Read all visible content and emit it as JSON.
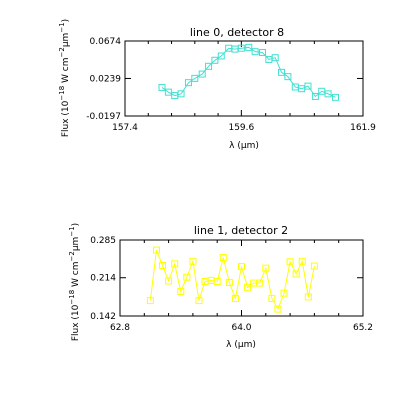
{
  "chart_data": [
    {
      "type": "line",
      "title": "line 0, detector 8",
      "xlabel": "λ (μm)",
      "ylabel": {
        "pre": "Flux (10",
        "exp1": "−18",
        "mid": " W cm",
        "exp2": "−2",
        "mid2": "μm",
        "exp3": "−1",
        "post": ")"
      },
      "xlim": [
        157.4,
        161.9
      ],
      "ylim": [
        -0.0197,
        0.0674
      ],
      "xticks": [
        {
          "v": 157.4,
          "label": "157.4"
        },
        {
          "v": 159.6,
          "label": "159.6"
        },
        {
          "v": 161.9,
          "label": "161.9"
        }
      ],
      "yticks": [
        {
          "v": -0.0197,
          "label": "-0.0197"
        },
        {
          "v": 0.0239,
          "label": "0.0239"
        },
        {
          "v": 0.0674,
          "label": "0.0674"
        }
      ],
      "color": "#40e0d0",
      "marker": "square",
      "series": [
        {
          "x": [
            158.1,
            158.22,
            158.34,
            158.46,
            158.6,
            158.72,
            158.86,
            158.98,
            159.1,
            159.22,
            159.36,
            159.48,
            159.6,
            159.74,
            159.86,
            160.0,
            160.12,
            160.24,
            160.36,
            160.48,
            160.62,
            160.74,
            160.86,
            161.0,
            161.12,
            161.24,
            161.38
          ],
          "y": [
            0.0135,
            0.008,
            0.004,
            0.006,
            0.019,
            0.024,
            0.029,
            0.038,
            0.045,
            0.05,
            0.059,
            0.058,
            0.059,
            0.06,
            0.055,
            0.054,
            0.046,
            0.048,
            0.031,
            0.026,
            0.014,
            0.012,
            0.015,
            0.003,
            0.009,
            0.006,
            0.002
          ]
        }
      ]
    },
    {
      "type": "line",
      "title": "line 1, detector 2",
      "xlabel": "λ (μm)",
      "ylabel": {
        "pre": "Flux (10",
        "exp1": "−18",
        "mid": " W cm",
        "exp2": "−2",
        "mid2": "μm",
        "exp3": "−1",
        "post": ")"
      },
      "xlim": [
        62.8,
        65.2
      ],
      "ylim": [
        0.142,
        0.285
      ],
      "xticks": [
        {
          "v": 62.8,
          "label": "62.8"
        },
        {
          "v": 64.0,
          "label": "64.0"
        },
        {
          "v": 65.2,
          "label": "65.2"
        }
      ],
      "yticks": [
        {
          "v": 0.142,
          "label": "0.142"
        },
        {
          "v": 0.214,
          "label": "0.214"
        },
        {
          "v": 0.285,
          "label": "0.285"
        }
      ],
      "color": "#ffff00",
      "marker": "square",
      "series": [
        {
          "x": [
            63.1,
            63.16,
            63.22,
            63.28,
            63.34,
            63.4,
            63.46,
            63.52,
            63.58,
            63.64,
            63.7,
            63.76,
            63.82,
            63.88,
            63.94,
            64.0,
            64.06,
            64.12,
            64.18,
            64.24,
            64.3,
            64.36,
            64.42,
            64.48,
            64.54,
            64.6,
            64.66,
            64.72
          ],
          "y": [
            0.171,
            0.266,
            0.237,
            0.208,
            0.24,
            0.188,
            0.215,
            0.245,
            0.171,
            0.207,
            0.209,
            0.207,
            0.252,
            0.205,
            0.175,
            0.235,
            0.196,
            0.204,
            0.204,
            0.232,
            0.175,
            0.155,
            0.185,
            0.244,
            0.221,
            0.245,
            0.178,
            0.236
          ]
        }
      ]
    }
  ]
}
